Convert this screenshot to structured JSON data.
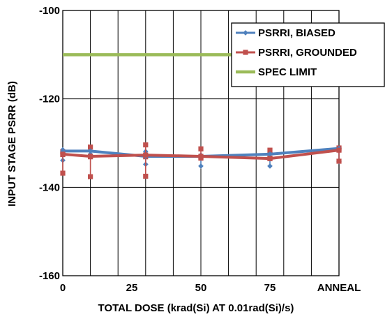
{
  "chart_data": {
    "type": "line",
    "title": "",
    "xlabel": "TOTAL DOSE (krad(Si) AT 0.01rad(Si)/s)",
    "ylabel": "INPUT STAGE PSRR (dB)",
    "x_tick_labels": [
      "0",
      "25",
      "50",
      "75",
      "ANNEAL"
    ],
    "x_tick_values": [
      0,
      25,
      50,
      75,
      100
    ],
    "x_grid_values": [
      0,
      10,
      20,
      30,
      40,
      50,
      60,
      70,
      80,
      90,
      100
    ],
    "xlim": [
      0,
      100
    ],
    "ylim": [
      -160,
      -100
    ],
    "y_ticks": [
      -160,
      -140,
      -120,
      -100
    ],
    "grid": true,
    "legend_position": "top-right",
    "series": [
      {
        "name": "PSRRI, BIASED",
        "color": "#4f81bd",
        "marker": "diamond",
        "x": [
          0,
          10,
          30,
          50,
          75,
          100
        ],
        "y": [
          -131.8,
          -131.8,
          -133.0,
          -133.0,
          -132.5,
          -131.2
        ],
        "spread": [
          {
            "x": 0,
            "y": [
              -131.5,
              -132.3,
              -133.9
            ]
          },
          {
            "x": 10,
            "y": [
              -131.8,
              -132.5
            ]
          },
          {
            "x": 30,
            "y": [
              -131.9,
              -132.7,
              -134.8
            ]
          },
          {
            "x": 50,
            "y": [
              -132.7,
              -133.1,
              -135.2
            ]
          },
          {
            "x": 75,
            "y": [
              -132.1,
              -133.6,
              -135.2
            ]
          },
          {
            "x": 100,
            "y": [
              -131.2,
              -134.2
            ]
          }
        ]
      },
      {
        "name": "PSRRI, GROUNDED",
        "color": "#c0504d",
        "marker": "square",
        "x": [
          0,
          10,
          30,
          50,
          75,
          100
        ],
        "y": [
          -132.5,
          -133.0,
          -132.7,
          -133.0,
          -133.5,
          -131.6
        ],
        "spread": [
          {
            "x": 0,
            "y": [
              -132.0,
              -132.6,
              -136.8
            ]
          },
          {
            "x": 10,
            "y": [
              -130.9,
              -133.1,
              -137.6
            ]
          },
          {
            "x": 30,
            "y": [
              -130.4,
              -133.1,
              -137.5
            ]
          },
          {
            "x": 50,
            "y": [
              -131.3,
              -133.2,
              -133.4
            ]
          },
          {
            "x": 75,
            "y": [
              -131.6,
              -133.4,
              -133.5
            ]
          },
          {
            "x": 100,
            "y": [
              -131.1,
              -131.4,
              -134.1
            ]
          }
        ]
      },
      {
        "name": "SPEC LIMIT",
        "color": "#9bbb59",
        "marker": "none",
        "x": [
          0,
          100
        ],
        "y": [
          -110,
          -110
        ]
      }
    ]
  }
}
